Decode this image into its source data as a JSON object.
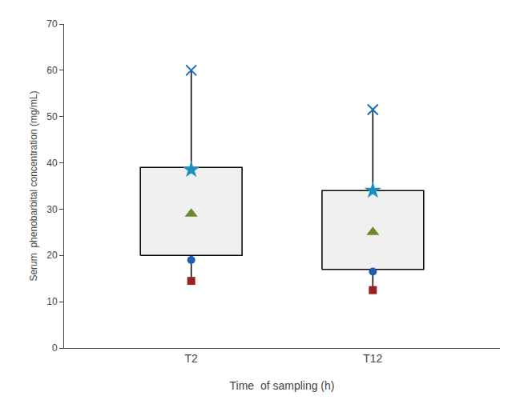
{
  "chart_data": {
    "type": "box",
    "xlabel": "Time  of sampling (h)",
    "ylabel": "Serum  phenobarbital concentration (mg/mL)",
    "categories": [
      "T2",
      "T12"
    ],
    "boxes": {
      "lower": [
        20,
        17
      ],
      "upper": [
        39,
        34
      ],
      "color": "#f0f0f0",
      "edge_color": "#000000"
    },
    "line_color": "#000000",
    "series": [
      {
        "values": [
          29,
          25
        ],
        "marker": "triangle",
        "color": "#6b8a2e"
      },
      {
        "values": [
          19,
          16.5
        ],
        "marker": "circle",
        "color": "#1a5fb0"
      },
      {
        "values": [
          14.5,
          12.5
        ],
        "marker": "square",
        "color": "#9b2020"
      },
      {
        "values": [
          38.5,
          34
        ],
        "marker": "star",
        "color": "#1a90c0"
      },
      {
        "values": [
          60,
          51.5
        ],
        "marker": "x",
        "color": "#1a70c0"
      }
    ],
    "ylim": [
      0,
      70
    ],
    "yticks": [
      0,
      10,
      20,
      30,
      40,
      50,
      60,
      70
    ],
    "grid": false
  }
}
